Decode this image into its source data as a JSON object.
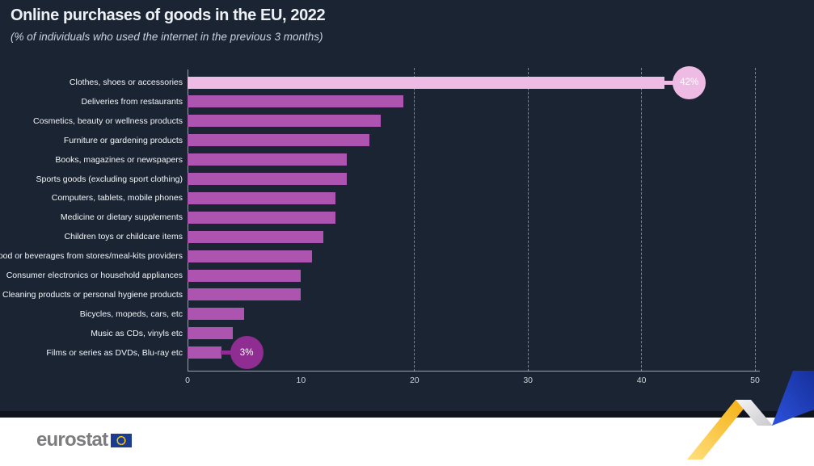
{
  "header": {
    "title": "Online purchases of goods in the EU, 2022",
    "subtitle": "(% of individuals who used the internet in the previous 3 months)"
  },
  "chart_data": {
    "type": "bar",
    "orientation": "horizontal",
    "title": "Online purchases of goods in the EU, 2022",
    "subtitle": "(% of individuals who used the internet in the previous 3 months)",
    "unit": "% of individuals",
    "categories": [
      "Clothes, shoes or accessories",
      "Deliveries from restaurants",
      "Cosmetics, beauty or wellness products",
      "Furniture or gardening products",
      "Books, magazines or newspapers",
      "Sports goods (excluding sport clothing)",
      "Computers, tablets, mobile phones",
      "Medicine or dietary supplements",
      "Children toys or childcare items",
      "Food or beverages from stores/meal-kits providers",
      "Consumer electronics or household appliances",
      "Cleaning products or personal hygiene products",
      "Bicycles, mopeds, cars, etc",
      "Music as CDs, vinyls etc",
      "Films or series as DVDs, Blu-ray etc"
    ],
    "values": [
      42,
      19,
      17,
      16,
      14,
      14,
      13,
      13,
      12,
      11,
      10,
      10,
      5,
      4,
      3
    ],
    "xlim": [
      0,
      50
    ],
    "xticks": [
      0,
      10,
      20,
      30,
      40,
      50
    ],
    "gridline_ticks": [
      20,
      30,
      40,
      50
    ],
    "grid": "dashed-vertical",
    "legend": "none",
    "annotations": [
      {
        "category_index": 0,
        "label": "42%",
        "style": "light"
      },
      {
        "category_index": 14,
        "label": "3%",
        "style": "dark"
      }
    ]
  },
  "colors": {
    "background": "#1b2433",
    "bar": "#ad53b0",
    "bar_highlight": "#edbbe3",
    "badge_light": "#edbbe3",
    "badge_dark": "#8f2d92",
    "badge_text": "#ffffff",
    "deco_yellow": "#f9c22b",
    "deco_blue": "#2347c5",
    "flag_blue": "#1b3d91",
    "flag_stars": "#ffcc00"
  },
  "footer": {
    "logo_text": "eurostat"
  }
}
